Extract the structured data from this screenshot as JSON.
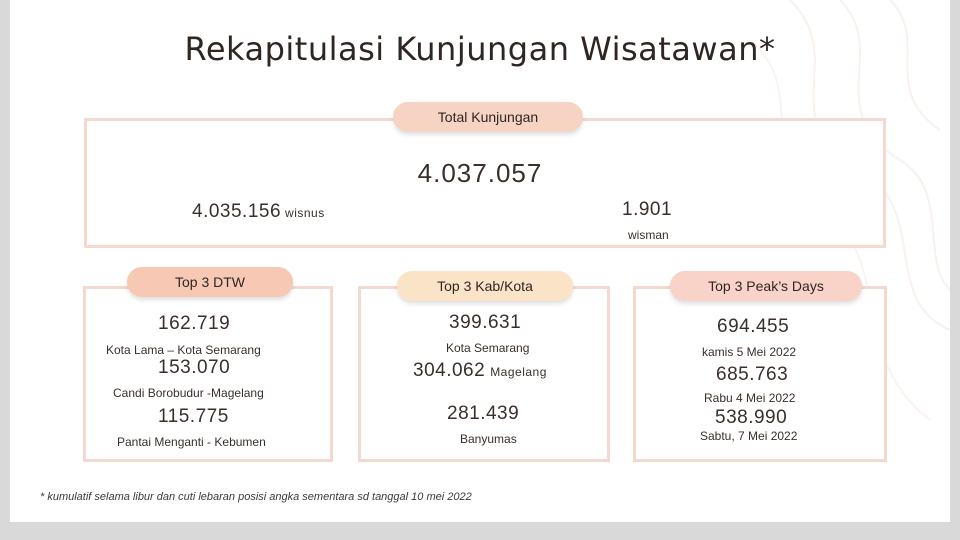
{
  "title": "Rekapitulasi Kunjungan Wisatawan*",
  "total": {
    "label": "Total Kunjungan",
    "value": "4.037.057",
    "wisnus_value": "4.035.156",
    "wisnus_label": "wisnus",
    "wisman_value": "1.901",
    "wisman_label": "wisman"
  },
  "dtw": {
    "label": "Top 3 DTW",
    "items": [
      {
        "value": "162.719",
        "name": "Kota Lama – Kota Semarang"
      },
      {
        "value": "153.070",
        "name": "Candi Borobudur -Magelang"
      },
      {
        "value": "115.775",
        "name": "Pantai Menganti - Kebumen"
      }
    ]
  },
  "kabkota": {
    "label": "Top 3 Kab/Kota",
    "items": [
      {
        "value": "399.631",
        "name": "Kota Semarang"
      },
      {
        "value": "304.062",
        "name": "Magelang"
      },
      {
        "value": "281.439",
        "name": "Banyumas"
      }
    ]
  },
  "peak": {
    "label": "Top 3 Peak’s Days",
    "items": [
      {
        "value": "694.455",
        "name": "kamis 5 Mei 2022"
      },
      {
        "value": "685.763",
        "name": "Rabu 4 Mei 2022"
      },
      {
        "value": "538.990",
        "name": "Sabtu, 7 Mei 2022"
      }
    ]
  },
  "footnote": "* kumulatif selama libur dan cuti lebaran posisi angka sementara sd tanggal 10 mei 2022",
  "colors": {
    "border": "#f3d9cf",
    "pill_total": "#f7d3c4",
    "pill_dtw": "#f7c9b4",
    "pill_kabkota": "#fbe3c8",
    "pill_peak": "#f9d2c8"
  }
}
